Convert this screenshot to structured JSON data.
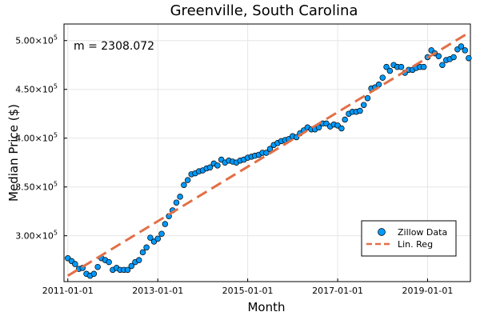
{
  "chart_data": {
    "type": "scatter",
    "title": "Greenville, South Carolina",
    "xlabel": "Month",
    "ylabel": "Median Price ($)",
    "x_range": [
      "2010-12-01",
      "2019-12-15"
    ],
    "y_range": [
      253000,
      517000
    ],
    "x_ticks": [
      {
        "value": "2011-01-01",
        "label": "2011-01-01"
      },
      {
        "value": "2013-01-01",
        "label": "2013-01-01"
      },
      {
        "value": "2015-01-01",
        "label": "2015-01-01"
      },
      {
        "value": "2017-01-01",
        "label": "2017-01-01"
      },
      {
        "value": "2019-01-01",
        "label": "2019-01-01"
      }
    ],
    "y_ticks": [
      {
        "value": 300000,
        "mantissa": "3.00×10",
        "exp": "5"
      },
      {
        "value": 350000,
        "mantissa": "3.50×10",
        "exp": "5"
      },
      {
        "value": 400000,
        "mantissa": "4.00×10",
        "exp": "5"
      },
      {
        "value": 450000,
        "mantissa": "4.50×10",
        "exp": "5"
      },
      {
        "value": 500000,
        "mantissa": "5.00×10",
        "exp": "5"
      }
    ],
    "grid": true,
    "legend_position": "bottom-right",
    "annotation": "m = 2308.072",
    "series": [
      {
        "name": "Zillow Data",
        "kind": "scatter",
        "color": "#009AFA",
        "x": [
          "2011-01",
          "2011-02",
          "2011-03",
          "2011-04",
          "2011-05",
          "2011-06",
          "2011-07",
          "2011-08",
          "2011-09",
          "2011-10",
          "2011-11",
          "2011-12",
          "2012-01",
          "2012-02",
          "2012-03",
          "2012-04",
          "2012-05",
          "2012-06",
          "2012-07",
          "2012-08",
          "2012-09",
          "2012-10",
          "2012-11",
          "2012-12",
          "2013-01",
          "2013-02",
          "2013-03",
          "2013-04",
          "2013-05",
          "2013-06",
          "2013-07",
          "2013-08",
          "2013-09",
          "2013-10",
          "2013-11",
          "2013-12",
          "2014-01",
          "2014-02",
          "2014-03",
          "2014-04",
          "2014-05",
          "2014-06",
          "2014-07",
          "2014-08",
          "2014-09",
          "2014-10",
          "2014-11",
          "2014-12",
          "2015-01",
          "2015-02",
          "2015-03",
          "2015-04",
          "2015-05",
          "2015-06",
          "2015-07",
          "2015-08",
          "2015-09",
          "2015-10",
          "2015-11",
          "2015-12",
          "2016-01",
          "2016-02",
          "2016-03",
          "2016-04",
          "2016-05",
          "2016-06",
          "2016-07",
          "2016-08",
          "2016-09",
          "2016-10",
          "2016-11",
          "2016-12",
          "2017-01",
          "2017-02",
          "2017-03",
          "2017-04",
          "2017-05",
          "2017-06",
          "2017-07",
          "2017-08",
          "2017-09",
          "2017-10",
          "2017-11",
          "2017-12",
          "2018-01",
          "2018-02",
          "2018-03",
          "2018-04",
          "2018-05",
          "2018-06",
          "2018-07",
          "2018-08",
          "2018-09",
          "2018-10",
          "2018-11",
          "2018-12",
          "2019-01",
          "2019-02",
          "2019-03",
          "2019-04",
          "2019-05",
          "2019-06",
          "2019-07",
          "2019-08",
          "2019-09",
          "2019-10",
          "2019-11",
          "2019-12"
        ],
        "y": [
          277000,
          274000,
          271000,
          266000,
          267000,
          261000,
          259000,
          261000,
          268000,
          277000,
          275000,
          273000,
          265000,
          267000,
          265000,
          265000,
          265000,
          269000,
          273000,
          275000,
          283000,
          288000,
          298000,
          294000,
          297000,
          302000,
          312000,
          320000,
          326000,
          334000,
          340000,
          352000,
          357000,
          363000,
          364000,
          366000,
          367000,
          369000,
          370000,
          374000,
          372000,
          378000,
          375000,
          377000,
          376000,
          375000,
          377000,
          378000,
          380000,
          381000,
          382000,
          383000,
          385000,
          385000,
          389000,
          393000,
          395000,
          397000,
          398000,
          399000,
          402000,
          401000,
          405000,
          408000,
          411000,
          409000,
          409000,
          411000,
          415000,
          415000,
          412000,
          414000,
          413000,
          410000,
          419000,
          425000,
          427000,
          427000,
          428000,
          434000,
          441000,
          451000,
          452000,
          455000,
          462000,
          473000,
          469000,
          475000,
          473000,
          473000,
          467000,
          470000,
          470000,
          472000,
          473000,
          473000,
          483000,
          490000,
          487000,
          484000,
          475000,
          480000,
          481000,
          483000,
          491000,
          494000,
          490000,
          482000
        ]
      },
      {
        "name": "Lin. Reg",
        "kind": "line",
        "dashed": true,
        "color": "#E26F46",
        "x": [
          "2011-01-01",
          "2019-12-01"
        ],
        "y": [
          259000,
          508000
        ]
      }
    ]
  }
}
